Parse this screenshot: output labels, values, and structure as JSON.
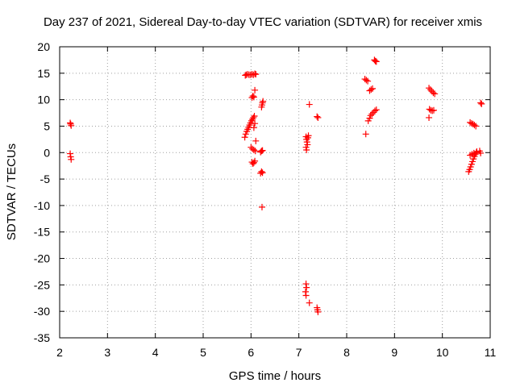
{
  "chart_data": {
    "type": "scatter",
    "title": "Day 237 of 2021, Sidereal Day-to-day VTEC variation (SDTVAR) for receiver xmis",
    "xlabel": "GPS time / hours",
    "ylabel": "SDTVAR / TECUs",
    "xlim": [
      2,
      11
    ],
    "ylim": [
      -35,
      20
    ],
    "xticks": [
      "2",
      "3",
      "4",
      "5",
      "6",
      "7",
      "8",
      "9",
      "10",
      "11"
    ],
    "yticks": [
      "20",
      "15",
      "10",
      "5",
      "0",
      "-5",
      "-10",
      "-15",
      "-20",
      "-25",
      "-30",
      "-35"
    ],
    "grid": true,
    "marker": "plus",
    "colors": {
      "points": "#ff0000",
      "grid": "#a0a0a0",
      "axes": "#000000"
    },
    "series": [
      {
        "name": "SDTVAR",
        "points": [
          [
            2.22,
            5.6
          ],
          [
            2.23,
            5.4
          ],
          [
            2.24,
            5.1
          ],
          [
            2.22,
            -0.2
          ],
          [
            2.23,
            -0.8
          ],
          [
            2.24,
            -1.3
          ],
          [
            5.88,
            14.6
          ],
          [
            5.9,
            14.7
          ],
          [
            5.93,
            14.8
          ],
          [
            5.96,
            14.7
          ],
          [
            5.99,
            14.7
          ],
          [
            6.02,
            14.8
          ],
          [
            6.05,
            14.7
          ],
          [
            6.08,
            14.9
          ],
          [
            6.1,
            14.8
          ],
          [
            5.87,
            2.9
          ],
          [
            5.89,
            3.5
          ],
          [
            5.91,
            4.0
          ],
          [
            5.93,
            4.4
          ],
          [
            5.95,
            4.8
          ],
          [
            5.97,
            5.2
          ],
          [
            5.99,
            5.6
          ],
          [
            6.01,
            6.0
          ],
          [
            6.03,
            6.3
          ],
          [
            6.05,
            6.6
          ],
          [
            6.07,
            6.9
          ],
          [
            6.08,
            5.5
          ],
          [
            6.06,
            4.7
          ],
          [
            6.02,
            10.4
          ],
          [
            6.04,
            10.7
          ],
          [
            6.06,
            10.5
          ],
          [
            6.08,
            11.8
          ],
          [
            6.22,
            8.6
          ],
          [
            6.23,
            9.0
          ],
          [
            6.24,
            9.4
          ],
          [
            6.25,
            9.7
          ],
          [
            6.0,
            1.0
          ],
          [
            6.03,
            0.7
          ],
          [
            6.06,
            0.5
          ],
          [
            6.09,
            0.3
          ],
          [
            6.1,
            2.2
          ],
          [
            6.2,
            0.1
          ],
          [
            6.22,
            0.3
          ],
          [
            6.24,
            0.4
          ],
          [
            6.02,
            -1.8
          ],
          [
            6.04,
            -2.1
          ],
          [
            6.06,
            -1.9
          ],
          [
            6.08,
            -1.6
          ],
          [
            6.2,
            -3.9
          ],
          [
            6.22,
            -3.6
          ],
          [
            6.24,
            -3.8
          ],
          [
            6.23,
            -10.3
          ],
          [
            7.15,
            3.0
          ],
          [
            7.16,
            2.5
          ],
          [
            7.17,
            2.0
          ],
          [
            7.18,
            1.5
          ],
          [
            7.15,
            1.0
          ],
          [
            7.16,
            0.5
          ],
          [
            7.19,
            2.8
          ],
          [
            7.2,
            3.2
          ],
          [
            7.22,
            9.1
          ],
          [
            7.38,
            6.8
          ],
          [
            7.4,
            6.6
          ],
          [
            7.15,
            -24.8
          ],
          [
            7.16,
            -25.5
          ],
          [
            7.14,
            -26.3
          ],
          [
            7.15,
            -27.0
          ],
          [
            7.22,
            -28.4
          ],
          [
            7.38,
            -29.3
          ],
          [
            7.39,
            -29.7
          ],
          [
            7.4,
            -30.1
          ],
          [
            8.38,
            13.9
          ],
          [
            8.41,
            13.7
          ],
          [
            8.44,
            13.5
          ],
          [
            8.4,
            3.5
          ],
          [
            8.45,
            6.0
          ],
          [
            8.48,
            6.5
          ],
          [
            8.5,
            7.0
          ],
          [
            8.53,
            7.3
          ],
          [
            8.56,
            7.6
          ],
          [
            8.59,
            7.9
          ],
          [
            8.62,
            8.1
          ],
          [
            8.48,
            11.7
          ],
          [
            8.51,
            11.9
          ],
          [
            8.54,
            12.1
          ],
          [
            8.58,
            17.5
          ],
          [
            8.6,
            17.3
          ],
          [
            8.62,
            17.2
          ],
          [
            9.72,
            12.2
          ],
          [
            9.75,
            11.9
          ],
          [
            9.78,
            11.6
          ],
          [
            9.81,
            11.3
          ],
          [
            9.84,
            11.1
          ],
          [
            9.73,
            8.2
          ],
          [
            9.76,
            8.0
          ],
          [
            9.79,
            7.9
          ],
          [
            9.82,
            8.0
          ],
          [
            9.72,
            6.6
          ],
          [
            10.58,
            5.7
          ],
          [
            10.61,
            5.5
          ],
          [
            10.64,
            5.4
          ],
          [
            10.67,
            5.2
          ],
          [
            10.7,
            5.0
          ],
          [
            10.55,
            -3.6
          ],
          [
            10.57,
            -3.2
          ],
          [
            10.59,
            -2.7
          ],
          [
            10.61,
            -2.2
          ],
          [
            10.63,
            -1.7
          ],
          [
            10.65,
            -1.2
          ],
          [
            10.67,
            -0.7
          ],
          [
            10.69,
            -0.3
          ],
          [
            10.71,
            0.0
          ],
          [
            10.58,
            -0.5
          ],
          [
            10.62,
            -0.3
          ],
          [
            10.66,
            -0.1
          ],
          [
            10.72,
            0.2
          ],
          [
            10.78,
            0.3
          ],
          [
            10.8,
            -0.1
          ],
          [
            10.8,
            9.4
          ],
          [
            10.82,
            9.2
          ]
        ]
      }
    ]
  }
}
